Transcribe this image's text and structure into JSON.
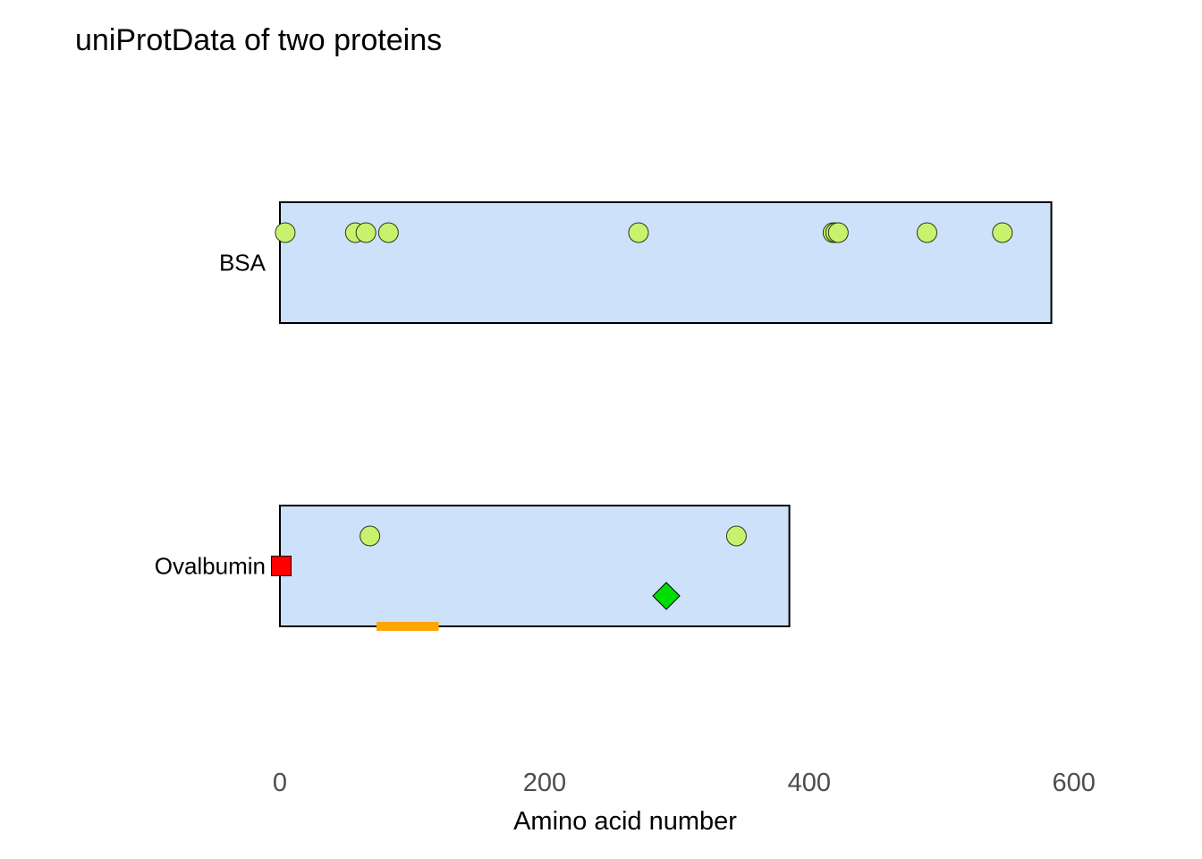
{
  "chart_data": {
    "type": "protein-feature-plot",
    "title": "uniProtData of two proteins",
    "xlabel": "Amino acid number",
    "ylabel": "",
    "xlim": [
      -110,
      625
    ],
    "x_ticks": [
      0,
      200,
      400,
      600
    ],
    "x_tick_labels": [
      "0",
      "200",
      "400",
      "600"
    ],
    "grid": false,
    "legend": "none",
    "colors": {
      "chain_fill": "#cde1fb",
      "chain_border": "#000000",
      "site": "#c8f26e",
      "site_border": "#2b3a10",
      "signal": "#ff0000",
      "region": "#ffa500",
      "variant": "#00dd00"
    },
    "proteins": [
      {
        "name": "BSA",
        "chain": {
          "start": 1,
          "end": 583
        },
        "sites": [
          4,
          57,
          65,
          82,
          271,
          418,
          420,
          422,
          489,
          546
        ]
      },
      {
        "name": "Ovalbumin",
        "chain": {
          "start": 1,
          "end": 385
        },
        "sites": [
          68,
          345
        ],
        "signal": {
          "position": 1,
          "color": "#ff0000"
        },
        "region": {
          "start": 73,
          "end": 120,
          "color": "#ffa500"
        },
        "variant": {
          "position": 292,
          "color": "#00dd00"
        }
      }
    ]
  }
}
